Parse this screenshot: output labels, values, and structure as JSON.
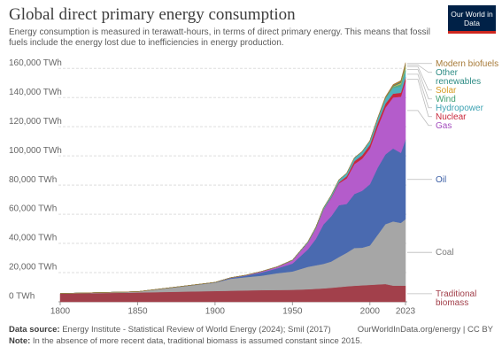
{
  "header": {
    "logo": "Our World in Data"
  },
  "chart_data": {
    "type": "stacked_area",
    "title": "Global direct primary energy consumption",
    "subtitle": "Energy consumption is measured in terawatt-hours, in terms of direct primary energy. This means that fossil fuels include the energy lost due to inefficiencies in energy production.",
    "x": [
      1800,
      1850,
      1900,
      1910,
      1920,
      1930,
      1940,
      1950,
      1960,
      1965,
      1970,
      1975,
      1980,
      1985,
      1990,
      1995,
      2000,
      2005,
      2010,
      2015,
      2020,
      2023
    ],
    "xlim": [
      1800,
      2023
    ],
    "xticks": [
      1800,
      1850,
      1900,
      1950,
      2000,
      2023
    ],
    "ylim": [
      0,
      165000
    ],
    "yticks": [
      {
        "value": 0,
        "label": "0 TWh"
      },
      {
        "value": 20000,
        "label": "20,000 TWh"
      },
      {
        "value": 40000,
        "label": "40,000 TWh"
      },
      {
        "value": 60000,
        "label": "60,000 TWh"
      },
      {
        "value": 80000,
        "label": "80,000 TWh"
      },
      {
        "value": 100000,
        "label": "100,000 TWh"
      },
      {
        "value": 120000,
        "label": "120,000 TWh"
      },
      {
        "value": 140000,
        "label": "140,000 TWh"
      },
      {
        "value": 160000,
        "label": "160,000 TWh"
      }
    ],
    "grid": true,
    "series": [
      {
        "name": "Traditional biomass",
        "color": "#a2404b",
        "label_color": "#a2404b",
        "values": [
          5600,
          6400,
          7400,
          7600,
          7800,
          8000,
          8100,
          8200,
          8600,
          8900,
          9200,
          9600,
          10100,
          10600,
          11000,
          11300,
          11600,
          11900,
          12200,
          11100,
          11100,
          11100
        ]
      },
      {
        "name": "Coal",
        "color": "#a6a6a6",
        "label_color": "#7a7a7a",
        "values": [
          97,
          570,
          5700,
          8200,
          9100,
          9900,
          11500,
          12600,
          15400,
          16100,
          16800,
          18000,
          20600,
          23000,
          25900,
          25800,
          27000,
          34000,
          41000,
          44000,
          43000,
          45500
        ]
      },
      {
        "name": "Oil",
        "color": "#4a6ab0",
        "label_color": "#3b5ea5",
        "values": [
          0,
          0,
          180,
          500,
          1100,
          2200,
          3300,
          5400,
          12000,
          18000,
          27000,
          31000,
          35500,
          33500,
          37000,
          39000,
          42000,
          46000,
          47800,
          50000,
          48000,
          54500
        ]
      },
      {
        "name": "Gas",
        "color": "#b45ccb",
        "label_color": "#a34cbd",
        "values": [
          0,
          0,
          60,
          180,
          230,
          600,
          900,
          2100,
          4500,
          7000,
          10000,
          12500,
          15000,
          17500,
          20500,
          22000,
          24500,
          28000,
          32000,
          35000,
          38500,
          40000
        ]
      },
      {
        "name": "Nuclear",
        "color": "#c8283c",
        "label_color": "#c8283c",
        "values": [
          0,
          0,
          0,
          0,
          0,
          0,
          0,
          0,
          2,
          25,
          80,
          380,
          700,
          1450,
          2000,
          2300,
          2500,
          2700,
          2750,
          2550,
          2690,
          2740
        ]
      },
      {
        "name": "Hydropower",
        "color": "#4fb1be",
        "label_color": "#3fa3b3",
        "values": [
          0,
          0,
          0,
          30,
          60,
          130,
          190,
          330,
          700,
          900,
          1200,
          1500,
          1700,
          2000,
          2200,
          2500,
          2600,
          2900,
          3400,
          3900,
          4300,
          4240
        ]
      },
      {
        "name": "Wind",
        "color": "#55ae85",
        "label_color": "#3e9e70",
        "values": [
          0,
          0,
          0,
          0,
          0,
          0,
          0,
          0,
          0,
          0,
          0,
          0,
          0,
          1,
          4,
          8,
          31,
          104,
          342,
          831,
          1590,
          2300
        ]
      },
      {
        "name": "Solar",
        "color": "#e6b344",
        "label_color": "#d69b23",
        "values": [
          0,
          0,
          0,
          0,
          0,
          0,
          0,
          0,
          0,
          0,
          0,
          0,
          0,
          0,
          0,
          1,
          1,
          4,
          34,
          260,
          855,
          1630
        ]
      },
      {
        "name": "Other renewables",
        "color": "#2e8c85",
        "label_color": "#2e8c85",
        "values": [
          0,
          0,
          0,
          0,
          0,
          0,
          0,
          0,
          0,
          20,
          30,
          40,
          50,
          80,
          100,
          130,
          170,
          220,
          300,
          440,
          620,
          700
        ]
      },
      {
        "name": "Modern biofuels",
        "color": "#a77a38",
        "label_color": "#a77a38",
        "values": [
          0,
          0,
          0,
          0,
          0,
          0,
          0,
          0,
          0,
          0,
          0,
          20,
          80,
          100,
          120,
          110,
          120,
          220,
          680,
          870,
          1000,
          1200
        ]
      }
    ],
    "source_label": "Data source:",
    "source": "Energy Institute - Statistical Review of World Energy (2024); Smil (2017)",
    "url": "OurWorldInData.org/energy | CC BY",
    "note_label": "Note:",
    "note": "In the absence of more recent data, traditional biomass is assumed constant since 2015."
  }
}
